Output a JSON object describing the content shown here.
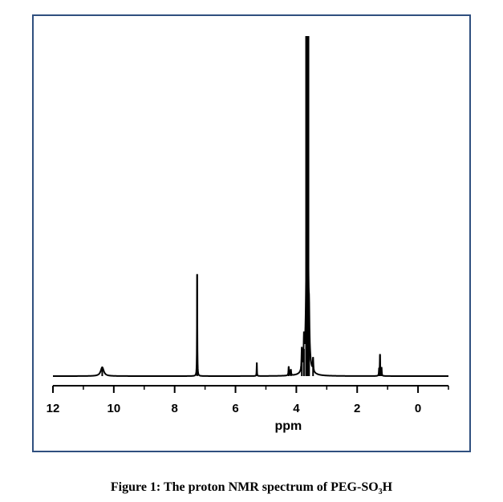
{
  "chart_data": {
    "type": "line",
    "xlabel": "ppm",
    "ylabel": "",
    "xlim": [
      12,
      -1
    ],
    "x_reversed": true,
    "xticks": [
      12,
      10,
      8,
      6,
      4,
      2,
      0
    ],
    "ylim": [
      0,
      100
    ],
    "grid": false,
    "series": [
      {
        "peaks": [
          {
            "ppm": 10.38,
            "height": 2.6,
            "width": 0.06
          },
          {
            "ppm": 7.26,
            "height": 30.0,
            "width": 0.006
          },
          {
            "ppm": 5.3,
            "height": 4.0,
            "width": 0.006
          },
          {
            "ppm": 4.25,
            "height": 2.7,
            "width": 0.01
          },
          {
            "ppm": 4.18,
            "height": 1.8,
            "width": 0.01
          },
          {
            "ppm": 3.82,
            "height": 6.5,
            "width": 0.012
          },
          {
            "ppm": 3.75,
            "height": 8.0,
            "width": 0.012
          },
          {
            "ppm": 3.64,
            "height": 100.0,
            "width": 0.025
          },
          {
            "ppm": 3.58,
            "height": 8.5,
            "width": 0.012
          },
          {
            "ppm": 3.45,
            "height": 4.0,
            "width": 0.01
          },
          {
            "ppm": 1.28,
            "height": 2.0,
            "width": 0.008
          },
          {
            "ppm": 1.25,
            "height": 6.5,
            "width": 0.008
          },
          {
            "ppm": 1.2,
            "height": 2.5,
            "width": 0.008
          }
        ]
      }
    ]
  },
  "caption": {
    "prefix": "Figure 1: The proton NMR spectrum of PEG-SO",
    "subscript": "3",
    "suffix": "H"
  }
}
